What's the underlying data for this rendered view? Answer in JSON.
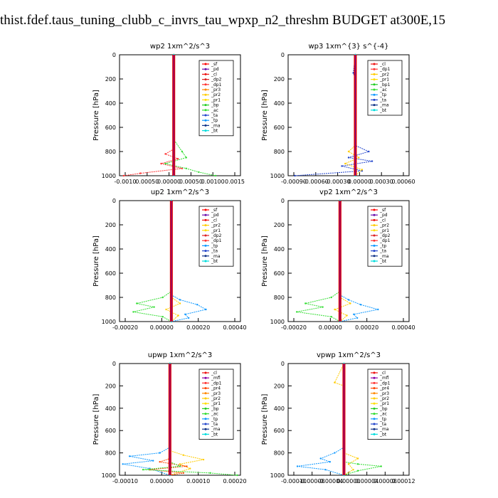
{
  "page_title": "thist.fdef.taus_tuning_clubb_c_invrs_tau_wpxp_n2_threshm  BUDGET at300E,15",
  "colors": {
    "_sf": "#ff0000",
    "_pd": "#6a0dad",
    "_cl": "#ee1111",
    "_dp2": "#dd2222",
    "_dp1": "#ff3333",
    "_pr3": "#ff8800",
    "_pr2": "#ffcc00",
    "_pr1": "#ffdd00",
    "_bp": "#22cc22",
    "_ac": "#33dd33",
    "_ta": "#2244cc",
    "_tp": "#1199ff",
    "_ma": "#113388",
    "_bt": "#00dddd",
    "_mfl": "#8800aa",
    "_pr4": "#ff4400"
  },
  "chart_data": [
    {
      "type": "line",
      "title": "wp2   1xm^2/s^3",
      "ylabel": "Pressure [hPa]",
      "ylim": [
        1000,
        0
      ],
      "yticks": [
        0,
        200,
        400,
        600,
        800,
        1000
      ],
      "xlim": [
        -0.0013,
        0.0016
      ],
      "xtick_labels": [
        "-0.0010",
        "0.00050",
        "0.00000",
        "0.00050",
        "0.00100",
        "0.0015"
      ],
      "legend": [
        "_sf",
        "_pd",
        "_cl",
        "_dp2",
        "_dp1",
        "_pr3",
        "_pr2",
        "_pr1",
        "_bp",
        "_ac",
        "_ta",
        "_tp",
        "_ma",
        "_bt"
      ],
      "series": [
        {
          "name": "_dp1",
          "x": [
            0,
            0,
            0,
            -0.0002,
            0.0001,
            -0.0003,
            0.0002,
            -0.0008,
            -0.0012
          ],
          "y": [
            0,
            600,
            780,
            820,
            860,
            900,
            940,
            980,
            1000
          ]
        },
        {
          "name": "_ac",
          "x": [
            0,
            0,
            0.0002,
            0.0003,
            -0.0002,
            0.0003,
            0.0006,
            0.001
          ],
          "y": [
            0,
            700,
            800,
            850,
            900,
            940,
            970,
            1000
          ]
        },
        {
          "name": "_bt",
          "x": [
            0,
            0,
            0,
            0
          ],
          "y": [
            0,
            400,
            800,
            1000
          ]
        }
      ]
    },
    {
      "type": "line",
      "title": "wp3   1xm^{3} s^{-4}",
      "ylabel": "Pressure [hPa]",
      "ylim": [
        1000,
        0
      ],
      "yticks": [
        0,
        200,
        400,
        600,
        800,
        1000
      ],
      "xlim": [
        -0.001,
        0.0008
      ],
      "xtick_labels": [
        "-0.00090",
        "-0.00060",
        "-0.00030",
        "0.00000",
        "0.00030",
        "0.00060"
      ],
      "legend": [
        "_cl",
        "_dp1",
        "_pr2",
        "_pr1",
        "_bp1",
        "_ac",
        "_tp",
        "_ta",
        "_ma",
        "_bt"
      ],
      "series": [
        {
          "name": "_ta",
          "x": [
            0,
            -3e-05,
            0,
            0,
            0.0002,
            -0.0001,
            0.00025,
            -0.0002,
            0.0001,
            -0.0009
          ],
          "y": [
            0,
            150,
            200,
            750,
            800,
            850,
            880,
            920,
            960,
            1000
          ]
        },
        {
          "name": "_pr2",
          "x": [
            0,
            0,
            -0.0001,
            5e-05,
            -0.00015,
            0.0001,
            0
          ],
          "y": [
            0,
            750,
            800,
            850,
            900,
            950,
            1000
          ]
        },
        {
          "name": "_bt",
          "x": [
            0,
            0,
            0
          ],
          "y": [
            0,
            500,
            1000
          ]
        }
      ]
    },
    {
      "type": "line",
      "title": "up2   1xm^2/s^3",
      "ylabel": "Pressure [hPa]",
      "ylim": [
        1000,
        0
      ],
      "yticks": [
        0,
        200,
        400,
        600,
        800,
        1000
      ],
      "xlim": [
        -0.0003,
        0.0004
      ],
      "xtick_labels": [
        "-0.00020",
        "0.00000",
        "0.00020",
        "0.00040"
      ],
      "legend": [
        "_sf",
        "_pd",
        "_cl",
        "_pr2",
        "_pr1",
        "_dp2",
        "_dp1",
        "_tp",
        "_ta",
        "_ma",
        "_bt"
      ],
      "series": [
        {
          "name": "_ac",
          "x": [
            0,
            0,
            -5e-05,
            -0.0002,
            -0.0001,
            -0.00022,
            -5e-05,
            0
          ],
          "y": [
            0,
            750,
            800,
            850,
            880,
            920,
            960,
            1000
          ]
        },
        {
          "name": "_tp",
          "x": [
            0,
            0,
            5e-05,
            0.00015,
            0.0002,
            8e-05,
            0.0001,
            0
          ],
          "y": [
            0,
            780,
            820,
            860,
            900,
            940,
            970,
            1000
          ]
        },
        {
          "name": "_pr2",
          "x": [
            0,
            0,
            5e-05,
            -3e-05,
            4e-05,
            0
          ],
          "y": [
            0,
            800,
            850,
            900,
            950,
            1000
          ]
        },
        {
          "name": "_bt",
          "x": [
            0,
            0,
            0
          ],
          "y": [
            0,
            500,
            1000
          ]
        }
      ]
    },
    {
      "type": "line",
      "title": "vp2   1xm^2/s^3",
      "ylabel": "Pressure [hPa]",
      "ylim": [
        1000,
        0
      ],
      "yticks": [
        0,
        200,
        400,
        600,
        800,
        1000
      ],
      "xlim": [
        -0.0003,
        0.0004
      ],
      "xtick_labels": [
        "-0.00020",
        "0.00000",
        "0.00020",
        "0.00040"
      ],
      "legend": [
        "_sf",
        "_pd",
        "_cl",
        "_pr2",
        "_pr1",
        "_dp2",
        "_dp1",
        "_tp",
        "_ta",
        "_ma",
        "_bt"
      ],
      "series": [
        {
          "name": "_ac",
          "x": [
            0,
            0,
            -5e-05,
            -0.0002,
            -0.0001,
            -0.00025,
            -5e-05,
            0
          ],
          "y": [
            0,
            750,
            800,
            850,
            880,
            920,
            960,
            1000
          ]
        },
        {
          "name": "_tp",
          "x": [
            0,
            0,
            5e-05,
            0.00012,
            0.00022,
            8e-05,
            0.0001,
            0
          ],
          "y": [
            0,
            780,
            820,
            860,
            900,
            940,
            970,
            1000
          ]
        },
        {
          "name": "_pr2",
          "x": [
            0,
            0,
            6e-05,
            -3e-05,
            4e-05,
            0
          ],
          "y": [
            0,
            800,
            850,
            900,
            950,
            1000
          ]
        },
        {
          "name": "_bt",
          "x": [
            0,
            0,
            0
          ],
          "y": [
            0,
            500,
            1000
          ]
        }
      ]
    },
    {
      "type": "line",
      "title": "upwp   1xm^2/s^3",
      "ylabel": "Pressure [hPa]",
      "ylim": [
        1000,
        0
      ],
      "yticks": [
        0,
        200,
        400,
        600,
        800,
        1000
      ],
      "xlim": [
        -0.00015,
        0.00021
      ],
      "xtick_labels": [
        "-0.00010",
        "0.00000",
        "0.00010",
        "0.00020"
      ],
      "legend": [
        "_cl",
        "_mfl",
        "_dp1",
        "_pr4",
        "_pr3",
        "_pr2",
        "_pr1",
        "_bp",
        "_ac",
        "_tp",
        "_ta",
        "_ma",
        "_bt"
      ],
      "series": [
        {
          "name": "_tp",
          "x": [
            0,
            0,
            -3e-05,
            -0.00012,
            -5e-05,
            -0.00014,
            -6e-05,
            0
          ],
          "y": [
            0,
            750,
            800,
            830,
            870,
            900,
            940,
            1000
          ]
        },
        {
          "name": "_pr2",
          "x": [
            0,
            0,
            4e-05,
            0.0001,
            3e-05,
            6e-05,
            0
          ],
          "y": [
            0,
            780,
            820,
            860,
            900,
            940,
            1000
          ]
        },
        {
          "name": "_pr4",
          "x": [
            0,
            0,
            -3e-05,
            5e-05,
            -6e-05,
            4e-05,
            0
          ],
          "y": [
            0,
            850,
            880,
            920,
            950,
            980,
            1000
          ]
        },
        {
          "name": "_ac",
          "x": [
            0,
            0,
            3e-05,
            -8e-05,
            0.00012,
            0.0002
          ],
          "y": [
            0,
            880,
            920,
            950,
            980,
            1000
          ]
        },
        {
          "name": "_bt",
          "x": [
            0,
            0,
            0
          ],
          "y": [
            0,
            500,
            1000
          ]
        }
      ]
    },
    {
      "type": "line",
      "title": "vpwp   1xm^2/s^3",
      "ylabel": "Pressure [hPa]",
      "ylim": [
        1000,
        0
      ],
      "yticks": [
        0,
        200,
        400,
        600,
        800,
        1000
      ],
      "xlim": [
        -0.00012,
        0.00014
      ],
      "xtick_labels": [
        "-0.00010",
        "-0.00008",
        "-0.00004",
        "0.00000",
        "0.00004",
        "0.00008",
        "0.00012"
      ],
      "legend": [
        "_cl",
        "_mfl",
        "_dp1",
        "_pr4",
        "_pr3",
        "_pr2",
        "_pr1",
        "_bp",
        "_ac",
        "_tp",
        "_ta",
        "_ma",
        "_bt"
      ],
      "series": [
        {
          "name": "_tp",
          "x": [
            0,
            0,
            -2e-05,
            -5e-05,
            -3e-05,
            -0.0001,
            -4e-05,
            0
          ],
          "y": [
            0,
            750,
            800,
            850,
            880,
            920,
            950,
            1000
          ]
        },
        {
          "name": "_pr2",
          "x": [
            0,
            -2e-05,
            0,
            0,
            3e-05,
            1e-05,
            2e-05,
            0
          ],
          "y": [
            0,
            170,
            200,
            800,
            850,
            900,
            950,
            1000
          ]
        },
        {
          "name": "_ac",
          "x": [
            0,
            0,
            3e-05,
            8e-05,
            3e-05,
            0
          ],
          "y": [
            0,
            880,
            900,
            920,
            960,
            1000
          ]
        },
        {
          "name": "_bt",
          "x": [
            0,
            0,
            0
          ],
          "y": [
            0,
            500,
            1000
          ]
        }
      ]
    }
  ]
}
